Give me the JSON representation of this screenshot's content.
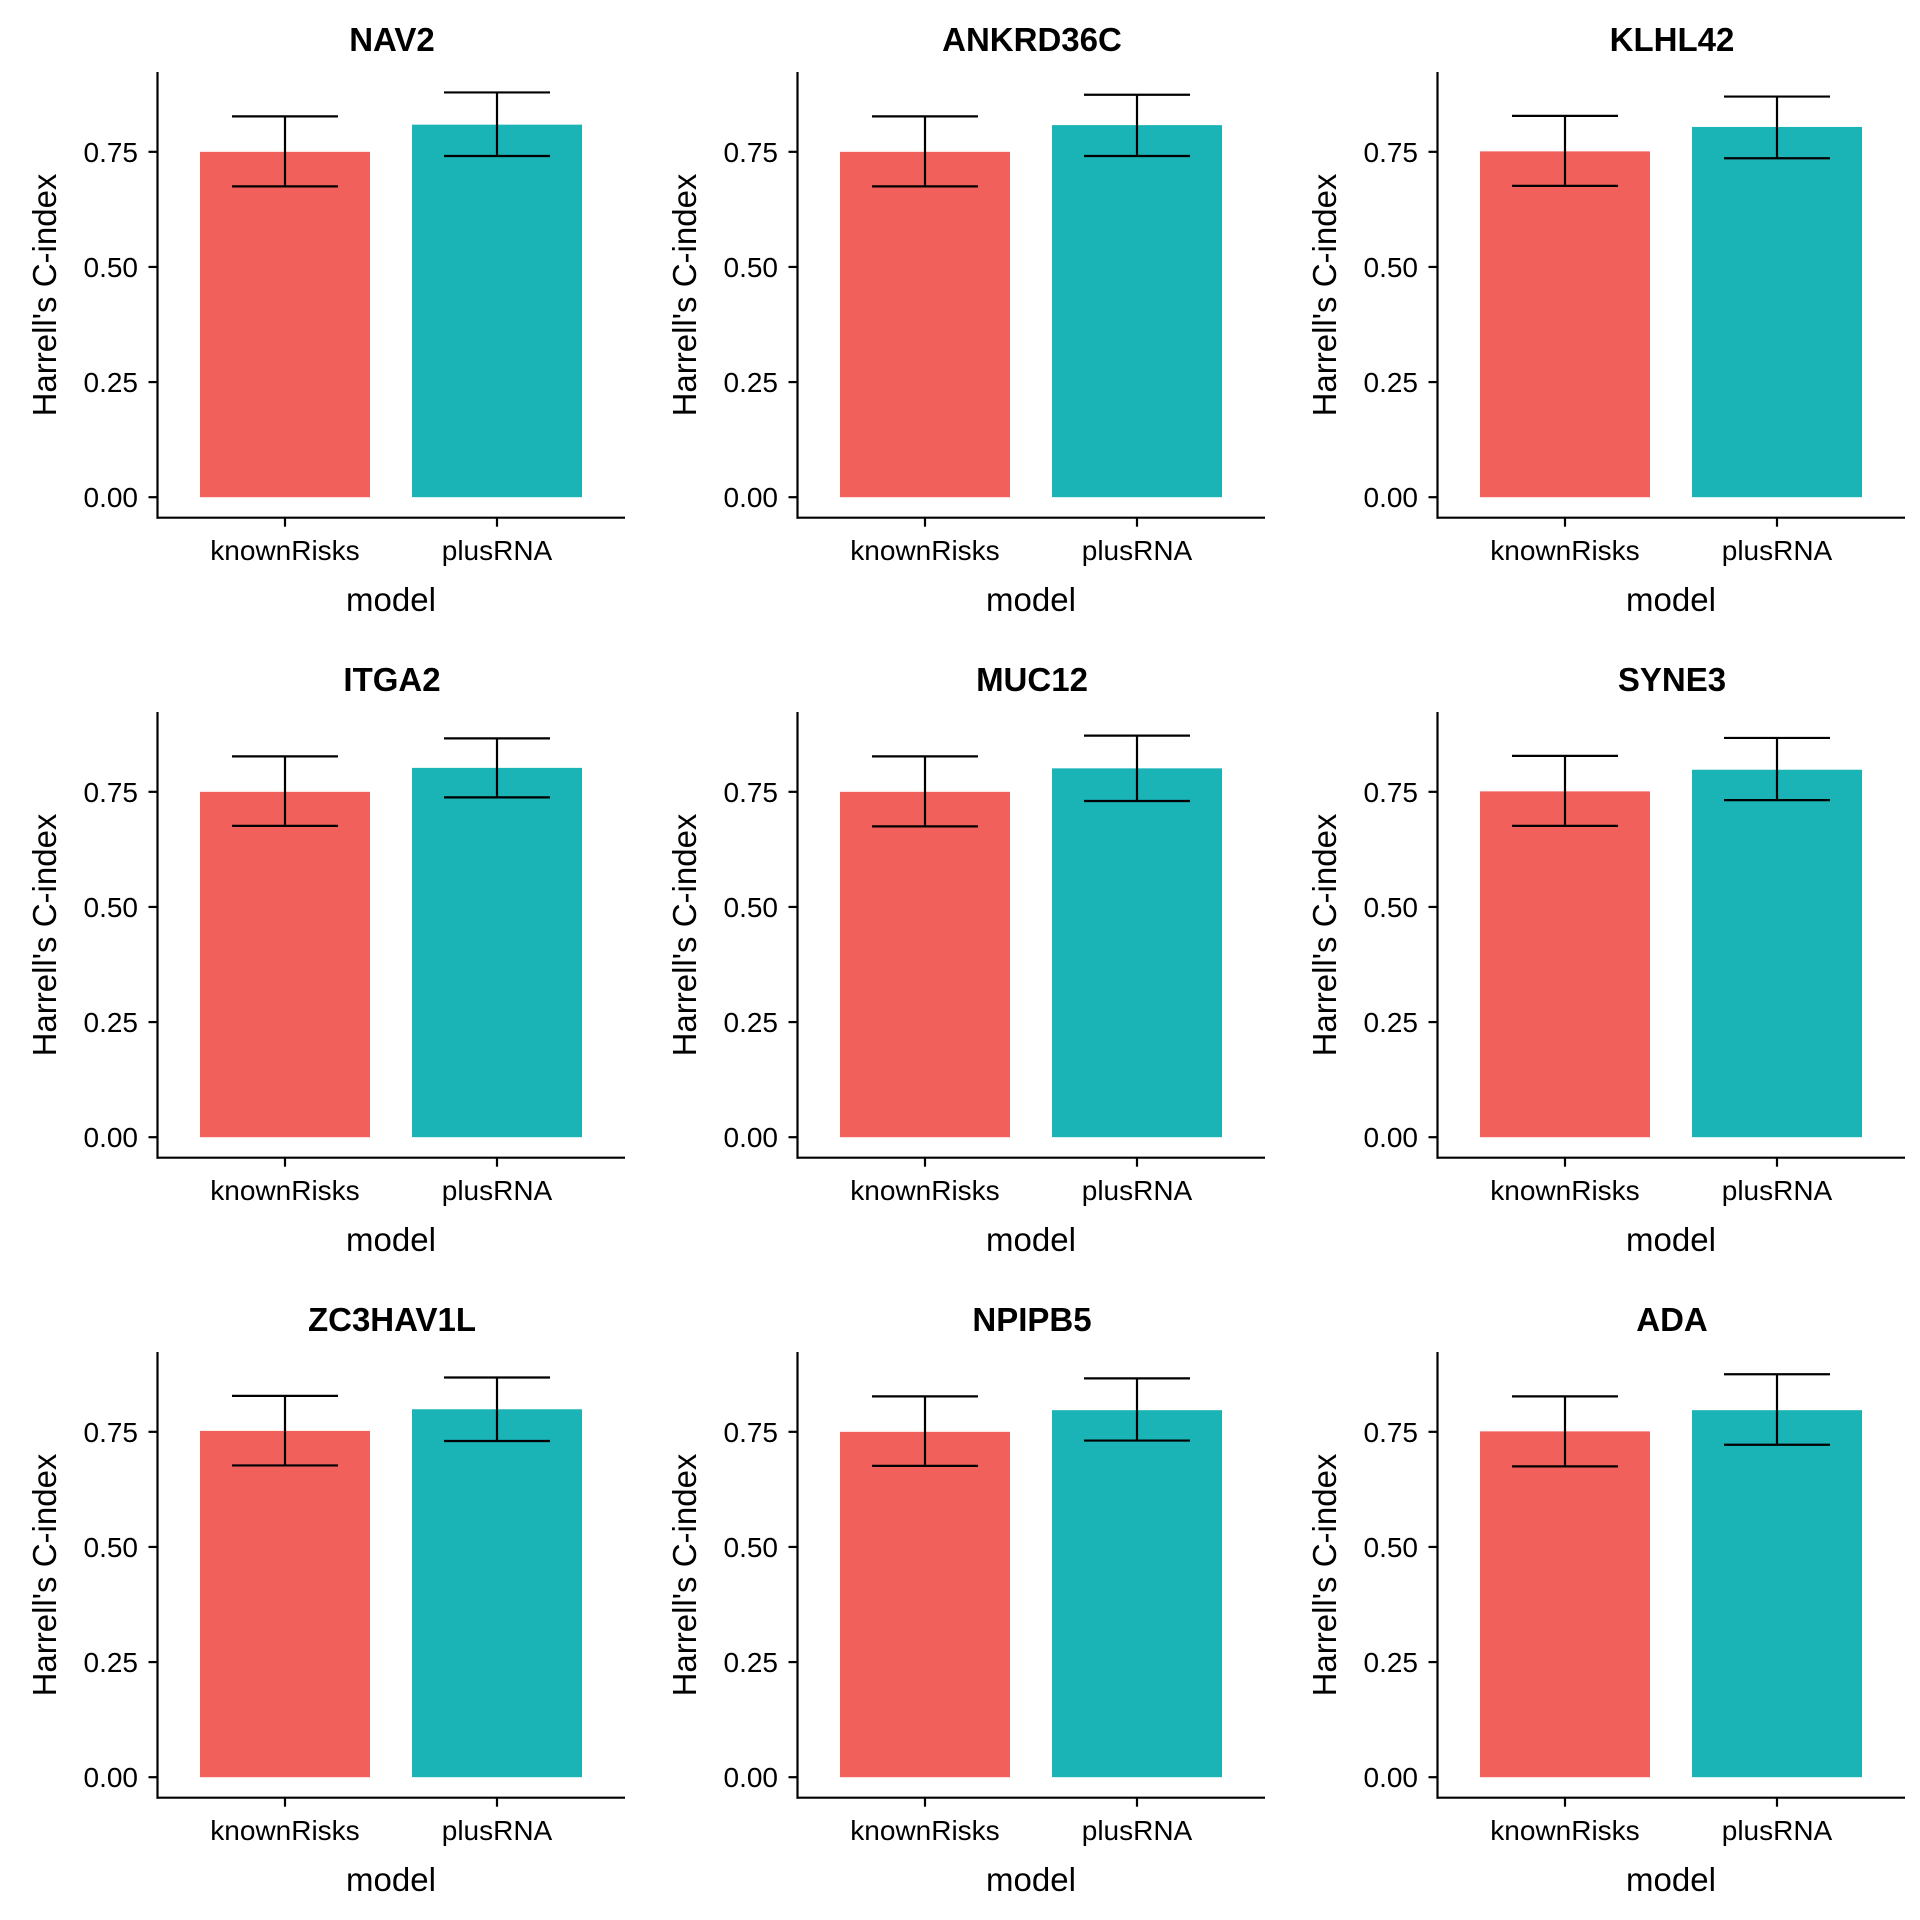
{
  "chart_data": {
    "type": "bar",
    "layout": "3x3 facet grid",
    "categories": [
      "knownRisks",
      "plusRNA"
    ],
    "xlabel": "model",
    "ylabel": "Harrell's C-index",
    "yticks": [
      "0.00",
      "0.25",
      "0.50",
      "0.75"
    ],
    "ylim": [
      0,
      0.92
    ],
    "grid": false,
    "legend": "none",
    "colors": {
      "knownRisks": "#F2605B",
      "plusRNA": "#1AB3B6",
      "errorbar": "#000000",
      "axis": "#000000"
    },
    "panels": [
      {
        "title": "NAV2",
        "values": [
          0.75,
          0.809
        ],
        "error_low": [
          0.675,
          0.741
        ],
        "error_high": [
          0.827,
          0.879
        ]
      },
      {
        "title": "ANKRD36C",
        "values": [
          0.75,
          0.808
        ],
        "error_low": [
          0.675,
          0.741
        ],
        "error_high": [
          0.827,
          0.874
        ]
      },
      {
        "title": "KLHL42",
        "values": [
          0.751,
          0.804
        ],
        "error_low": [
          0.676,
          0.736
        ],
        "error_high": [
          0.828,
          0.87
        ]
      },
      {
        "title": "ITGA2",
        "values": [
          0.75,
          0.802
        ],
        "error_low": [
          0.676,
          0.738
        ],
        "error_high": [
          0.827,
          0.866
        ]
      },
      {
        "title": "MUC12",
        "values": [
          0.75,
          0.801
        ],
        "error_low": [
          0.675,
          0.73
        ],
        "error_high": [
          0.827,
          0.872
        ]
      },
      {
        "title": "SYNE3",
        "values": [
          0.751,
          0.798
        ],
        "error_low": [
          0.676,
          0.732
        ],
        "error_high": [
          0.828,
          0.867
        ]
      },
      {
        "title": "ZC3HAV1L",
        "values": [
          0.752,
          0.799
        ],
        "error_low": [
          0.677,
          0.73
        ],
        "error_high": [
          0.828,
          0.868
        ]
      },
      {
        "title": "NPIPB5",
        "values": [
          0.75,
          0.797
        ],
        "error_low": [
          0.676,
          0.731
        ],
        "error_high": [
          0.827,
          0.866
        ]
      },
      {
        "title": "ADA",
        "values": [
          0.751,
          0.797
        ],
        "error_low": [
          0.675,
          0.722
        ],
        "error_high": [
          0.827,
          0.875
        ]
      }
    ]
  }
}
